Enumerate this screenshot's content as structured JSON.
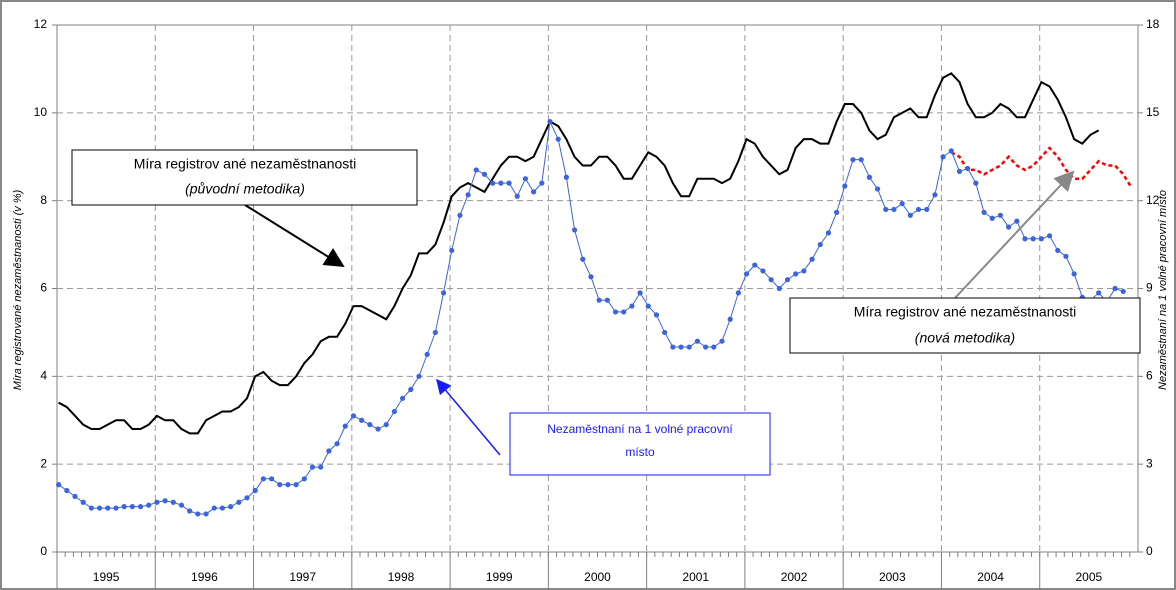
{
  "chart_data": {
    "type": "line",
    "x": [
      "1995",
      "1995",
      "1995",
      "1995",
      "1995",
      "1995",
      "1995",
      "1995",
      "1995",
      "1995",
      "1995",
      "1995",
      "1996",
      "1996",
      "1996",
      "1996",
      "1996",
      "1996",
      "1996",
      "1996",
      "1996",
      "1996",
      "1996",
      "1996",
      "1997",
      "1997",
      "1997",
      "1997",
      "1997",
      "1997",
      "1997",
      "1997",
      "1997",
      "1997",
      "1997",
      "1997",
      "1998",
      "1998",
      "1998",
      "1998",
      "1998",
      "1998",
      "1998",
      "1998",
      "1998",
      "1998",
      "1998",
      "1998",
      "1999",
      "1999",
      "1999",
      "1999",
      "1999",
      "1999",
      "1999",
      "1999",
      "1999",
      "1999",
      "1999",
      "1999",
      "2000",
      "2000",
      "2000",
      "2000",
      "2000",
      "2000",
      "2000",
      "2000",
      "2000",
      "2000",
      "2000",
      "2000",
      "2001",
      "2001",
      "2001",
      "2001",
      "2001",
      "2001",
      "2001",
      "2001",
      "2001",
      "2001",
      "2001",
      "2001",
      "2002",
      "2002",
      "2002",
      "2002",
      "2002",
      "2002",
      "2002",
      "2002",
      "2002",
      "2002",
      "2002",
      "2002",
      "2003",
      "2003",
      "2003",
      "2003",
      "2003",
      "2003",
      "2003",
      "2003",
      "2003",
      "2003",
      "2003",
      "2003",
      "2004",
      "2004",
      "2004",
      "2004",
      "2004",
      "2004",
      "2004",
      "2004",
      "2004",
      "2004",
      "2004",
      "2004",
      "2005",
      "2005",
      "2005",
      "2005",
      "2005",
      "2005",
      "2005",
      "2005",
      "2005",
      "2005",
      "2005",
      "2005"
    ],
    "ylabel": "Míra registrované nezaměstnanosti (v %)",
    "y2label": "Nezaměstnaní na 1 volné pracovní místo",
    "ylim": [
      0,
      12
    ],
    "yticks": [
      0,
      2,
      4,
      6,
      8,
      10,
      12
    ],
    "y2lim": [
      0,
      18
    ],
    "y2ticks": [
      0,
      3,
      6,
      9,
      12,
      15,
      18
    ],
    "grid": true,
    "series": [
      {
        "color": "#000000",
        "style": "solid",
        "values": [
          3.4,
          3.3,
          3.1,
          2.9,
          2.8,
          2.8,
          2.9,
          3.0,
          3.0,
          2.8,
          2.8,
          2.9,
          3.1,
          3.0,
          3.0,
          2.8,
          2.7,
          2.7,
          3.0,
          3.1,
          3.2,
          3.2,
          3.3,
          3.5,
          4.0,
          4.1,
          3.9,
          3.8,
          3.8,
          4.0,
          4.3,
          4.5,
          4.8,
          4.9,
          4.9,
          5.2,
          5.6,
          5.6,
          5.5,
          5.4,
          5.3,
          5.6,
          6.0,
          6.3,
          6.8,
          6.8,
          7.0,
          7.5,
          8.1,
          8.3,
          8.4,
          8.3,
          8.2,
          8.5,
          8.8,
          9.0,
          9.0,
          8.9,
          9.0,
          9.4,
          9.8,
          9.7,
          9.4,
          9.0,
          8.8,
          8.8,
          9.0,
          9.0,
          8.8,
          8.5,
          8.5,
          8.8,
          9.1,
          9.0,
          8.8,
          8.4,
          8.1,
          8.1,
          8.5,
          8.5,
          8.5,
          8.4,
          8.5,
          8.9,
          9.4,
          9.3,
          9.0,
          8.8,
          8.6,
          8.7,
          9.2,
          9.4,
          9.4,
          9.3,
          9.3,
          9.8,
          10.2,
          10.2,
          10.0,
          9.6,
          9.4,
          9.5,
          9.9,
          10.0,
          10.1,
          9.9,
          9.9,
          10.4,
          10.8,
          10.9,
          10.7,
          10.2,
          9.9,
          9.9,
          10.0,
          10.2,
          10.1,
          9.9,
          9.9,
          10.3,
          10.7,
          10.6,
          10.3,
          9.9,
          9.4,
          9.3,
          9.5,
          9.6,
          null,
          null,
          null,
          null
        ]
      },
      {
        "color": "#ff0000",
        "style": "dotted",
        "values": [
          null,
          null,
          null,
          null,
          null,
          null,
          null,
          null,
          null,
          null,
          null,
          null,
          null,
          null,
          null,
          null,
          null,
          null,
          null,
          null,
          null,
          null,
          null,
          null,
          null,
          null,
          null,
          null,
          null,
          null,
          null,
          null,
          null,
          null,
          null,
          null,
          null,
          null,
          null,
          null,
          null,
          null,
          null,
          null,
          null,
          null,
          null,
          null,
          null,
          null,
          null,
          null,
          null,
          null,
          null,
          null,
          null,
          null,
          null,
          null,
          null,
          null,
          null,
          null,
          null,
          null,
          null,
          null,
          null,
          null,
          null,
          null,
          null,
          null,
          null,
          null,
          null,
          null,
          null,
          null,
          null,
          null,
          null,
          null,
          null,
          null,
          null,
          null,
          null,
          null,
          null,
          null,
          null,
          null,
          null,
          null,
          null,
          null,
          null,
          null,
          null,
          null,
          null,
          null,
          null,
          null,
          null,
          null,
          null,
          9.1,
          9.0,
          8.7,
          8.7,
          8.6,
          8.7,
          8.8,
          9.0,
          8.8,
          8.7,
          8.8,
          9.0,
          9.2,
          9.0,
          8.7,
          8.5,
          8.5,
          8.7,
          8.9,
          8.8,
          8.8,
          8.6,
          8.3
        ]
      },
      {
        "color": "#3c64dc",
        "style": "markers",
        "axis": "y2",
        "values": [
          2.3,
          2.1,
          1.9,
          1.7,
          1.5,
          1.5,
          1.5,
          1.5,
          1.55,
          1.55,
          1.55,
          1.6,
          1.7,
          1.75,
          1.7,
          1.6,
          1.4,
          1.3,
          1.3,
          1.5,
          1.5,
          1.55,
          1.7,
          1.85,
          2.1,
          2.5,
          2.5,
          2.3,
          2.3,
          2.3,
          2.5,
          2.9,
          2.9,
          3.45,
          3.7,
          4.3,
          4.65,
          4.5,
          4.35,
          4.2,
          4.35,
          4.8,
          5.25,
          5.55,
          6.0,
          6.75,
          7.5,
          8.85,
          10.3,
          11.5,
          12.2,
          13.05,
          12.9,
          12.6,
          12.6,
          12.6,
          12.15,
          12.75,
          12.3,
          12.6,
          14.7,
          14.1,
          12.8,
          11.0,
          10.0,
          9.4,
          8.6,
          8.6,
          8.2,
          8.2,
          8.4,
          8.85,
          8.4,
          8.1,
          7.5,
          7.0,
          7.0,
          7.0,
          7.2,
          7.0,
          7.0,
          7.2,
          7.95,
          8.85,
          9.5,
          9.8,
          9.6,
          9.3,
          9.0,
          9.3,
          9.5,
          9.6,
          10.0,
          10.5,
          10.9,
          11.6,
          12.5,
          13.4,
          13.4,
          12.8,
          12.4,
          11.7,
          11.7,
          11.9,
          11.5,
          11.7,
          11.7,
          12.2,
          13.5,
          13.7,
          13.0,
          13.1,
          12.6,
          11.6,
          11.4,
          11.5,
          11.1,
          11.3,
          10.7,
          10.7,
          10.7,
          10.8,
          10.3,
          10.1,
          9.5,
          8.7,
          8.6,
          8.85,
          8.55,
          9.0,
          8.9,
          null
        ]
      }
    ],
    "annotations": [
      {
        "lines": [
          "Míra registrov ané nezaměstnanosti",
          "(původní metodika)"
        ]
      },
      {
        "lines": [
          "Nezaměstnaní na 1 volné pracovní",
          "místo"
        ]
      },
      {
        "lines": [
          "Míra registrov ané nezaměstnanosti",
          "(nová metodika)"
        ]
      }
    ]
  }
}
